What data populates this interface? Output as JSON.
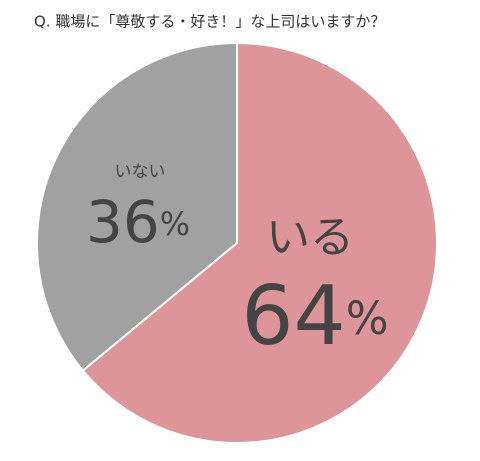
{
  "chart_data": {
    "type": "pie",
    "title": "Q. 職場に「尊敬する・好き！」な上司はいますか？",
    "categories": [
      "いる",
      "いない"
    ],
    "values": [
      64,
      36
    ],
    "value_labels": [
      "64%",
      "36%"
    ],
    "colors": [
      "#de959a",
      "#a1a1a1"
    ]
  }
}
